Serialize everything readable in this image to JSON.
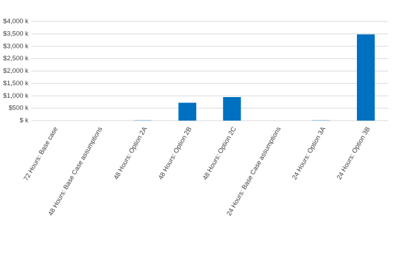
{
  "chart_data": {
    "type": "bar",
    "categories": [
      "72 Hours: Base case",
      "48 Hours: Base Case assumptions",
      "48 Hours: Option 2A",
      "48 Hours: Option 2B",
      "48 Hours: Option 2C",
      "24 Hours: Base Case assumptions",
      "24 Hours: Option 3A",
      "24 Hours: Option 3B"
    ],
    "values": [
      0,
      0,
      10,
      720,
      950,
      0,
      10,
      3480
    ],
    "color": "#0070c0",
    "ylim": [
      0,
      4000
    ],
    "yticks": [
      {
        "value": 0,
        "label": "$ k"
      },
      {
        "value": 500,
        "label": "$500 k"
      },
      {
        "value": 1000,
        "label": "$1,000 k"
      },
      {
        "value": 1500,
        "label": "$1,500 k"
      },
      {
        "value": 2000,
        "label": "$2,000 k"
      },
      {
        "value": 2500,
        "label": "$2,500 k"
      },
      {
        "value": 3000,
        "label": "$3,000 k"
      },
      {
        "value": 3500,
        "label": "$3,500 k"
      },
      {
        "value": 4000,
        "label": "$4,000 k"
      }
    ],
    "grid": true
  }
}
